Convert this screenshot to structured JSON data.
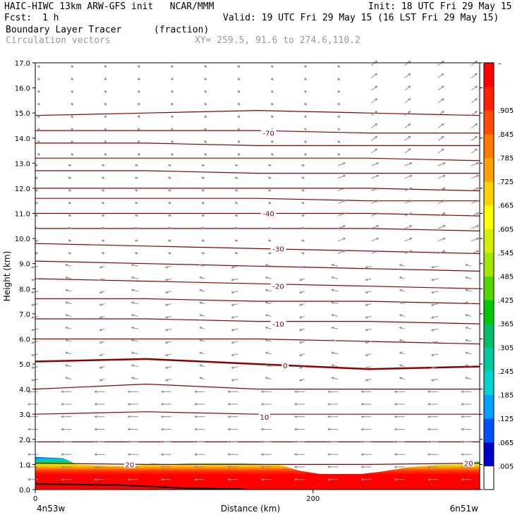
{
  "header": {
    "model": "HAIC-HIWC 13km ARW-GFS init   NCAR/MMM",
    "init": "Init: 18 UTC Fri 29 May 15",
    "fcst_label": "Fcst:",
    "fcst_value": "1 h",
    "valid": "Valid: 19 UTC Fri 29 May 15 (16 LST Fri 29 May 15)",
    "field": "Boundary Layer Tracer",
    "units": "(fraction)",
    "vectors": "Circulation vectors",
    "xy": "XY= 259.5, 91.6 to 274.6,110.2"
  },
  "chart_data": {
    "type": "cross-section",
    "ylabel": "Height (km)",
    "xlabel": "Distance (km)",
    "ylim": [
      0,
      17
    ],
    "xlim": [
      0,
      320
    ],
    "y_ticks": [
      "0.0",
      "1.0",
      "2.0",
      "3.0",
      "4.0",
      "5.0",
      "6.0",
      "7.0",
      "8.0",
      "9.0",
      "10.0",
      "11.0",
      "12.0",
      "13.0",
      "14.0",
      "15.0",
      "16.0",
      "17.0"
    ],
    "x_ticks": [
      {
        "value": 0,
        "label": "0"
      },
      {
        "value": 200,
        "label": "200"
      }
    ],
    "left_endpoint": "4n53w",
    "right_endpoint": "6n51w",
    "colorbar_labels": [
      ".005",
      ".065",
      ".125",
      ".185",
      ".245",
      ".305",
      ".365",
      ".425",
      ".485",
      ".545",
      ".605",
      ".665",
      ".725",
      ".785",
      ".845",
      ".905"
    ],
    "colorbar_top_label": "–",
    "colorbar_colors": [
      "#ffffff",
      "#0000c8",
      "#0050ff",
      "#00a0ff",
      "#00d2d2",
      "#00c8a0",
      "#00be64",
      "#00c800",
      "#50d700",
      "#a0e600",
      "#d2f000",
      "#ffff00",
      "#ffd200",
      "#ffa000",
      "#ff7800",
      "#ff4b00",
      "#ff2000",
      "#ff0000"
    ],
    "contour_labels": [
      {
        "text": "-70",
        "x": 168,
        "y": 14.2
      },
      {
        "text": "-40",
        "x": 168,
        "y": 11.0
      },
      {
        "text": "-30",
        "x": 175,
        "y": 9.6
      },
      {
        "text": "-20",
        "x": 175,
        "y": 8.1
      },
      {
        "text": "-10",
        "x": 175,
        "y": 6.6
      },
      {
        "text": "0",
        "x": 180,
        "y": 4.95
      },
      {
        "text": "10",
        "x": 165,
        "y": 2.9
      },
      {
        "text": "20",
        "x": 68,
        "y": 1.0
      },
      {
        "text": "20",
        "x": 312,
        "y": 1.05
      }
    ]
  }
}
